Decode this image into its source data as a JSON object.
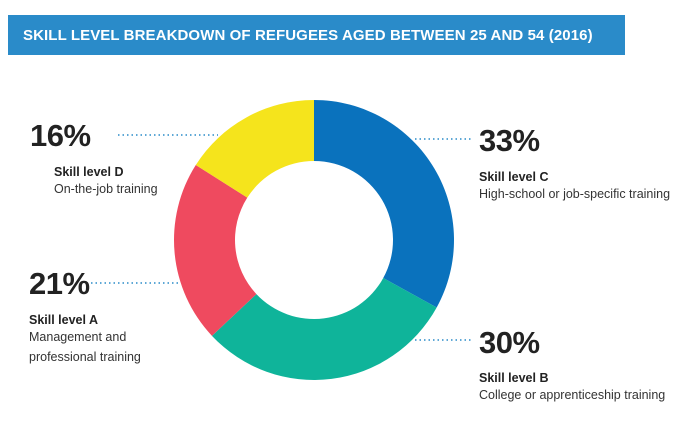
{
  "title": "SKILL LEVEL BREAKDOWN OF REFUGEES AGED BETWEEN 25 AND 54 (2016)",
  "colors": {
    "banner": "#2a8bc9",
    "skill_c": "#0a72bd",
    "skill_b": "#0fb49a",
    "skill_a": "#ef4a5f",
    "skill_d": "#f5e41c",
    "leader": "#2a8bc9"
  },
  "chart_data": {
    "type": "pie",
    "title": "SKILL LEVEL BREAKDOWN OF REFUGEES AGED BETWEEN 25 AND 54 (2016)",
    "unit": "%",
    "slices": [
      {
        "name": "Skill level C",
        "label": "33%",
        "value": 33,
        "description": "High-school or job-specific training",
        "color": "#0a72bd"
      },
      {
        "name": "Skill level B",
        "label": "30%",
        "value": 30,
        "description": "College or apprenticeship training",
        "color": "#0fb49a"
      },
      {
        "name": "Skill level A",
        "label": "21%",
        "value": 21,
        "description": "Management and professional training",
        "color": "#ef4a5f"
      },
      {
        "name": "Skill level D",
        "label": "16%",
        "value": 16,
        "description": "On-the-job training",
        "color": "#f5e41c"
      }
    ]
  }
}
